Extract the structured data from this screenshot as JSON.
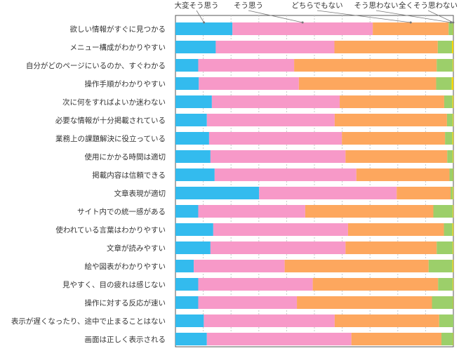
{
  "chart_data": {
    "type": "bar",
    "orientation": "horizontal",
    "stacked": "percent",
    "grid": true,
    "legend_placement": "top, callout labels with leader lines",
    "xlim": [
      0,
      100
    ],
    "categories": [
      "欲しい情報がすぐに見つかる",
      "メニュー構成がわかりやすい",
      "自分がどのページにいるのか、すぐわかる",
      "操作手順がわかりやすい",
      "次に何をすればよいか迷わない",
      "必要な情報が十分掲載されている",
      "業務上の課題解決に役立っている",
      "使用にかかる時間は適切",
      "掲載内容は信頼できる",
      "文章表現が適切",
      "サイト内での統一感がある",
      "使われている言葉はわかりやすい",
      "文章が読みやすい",
      "絵や図表がわかりやすい",
      "見やすく、目の疲れは感じない",
      "操作に対する反応が速い",
      "表示が遅くなったり、途中で止まることはない",
      "画面は正しく表示される"
    ],
    "series": [
      {
        "name": "大変そう思う",
        "color": "#33bbee",
        "values": [
          20.5,
          14.5,
          8.2,
          8.4,
          13.1,
          11.3,
          12.1,
          12.6,
          14.1,
          30.1,
          8.2,
          13.6,
          12.6,
          6.6,
          8.2,
          8.2,
          10.2,
          11.3
        ]
      },
      {
        "name": "そう思う",
        "color": "#f799c8",
        "values": [
          50.5,
          42.7,
          34.5,
          36.0,
          46.0,
          46.0,
          47.8,
          48.6,
          51.0,
          49.5,
          38.5,
          48.5,
          48.6,
          32.7,
          41.2,
          35.5,
          47.1,
          52.0
        ]
      },
      {
        "name": "どちらでもない",
        "color": "#fda75e",
        "values": [
          27.3,
          37.2,
          51.3,
          49.4,
          37.6,
          40.4,
          37.1,
          36.6,
          33.5,
          19.4,
          46.1,
          34.5,
          32.8,
          51.8,
          45.1,
          48.6,
          37.6,
          32.4
        ]
      },
      {
        "name": "そう思わない",
        "color": "#9ccf6a",
        "values": [
          1.6,
          5.1,
          5.8,
          5.6,
          3.0,
          2.1,
          2.7,
          2.0,
          1.3,
          0.8,
          7.0,
          3.1,
          5.8,
          8.6,
          5.3,
          7.6,
          5.1,
          4.2
        ]
      },
      {
        "name": "全くそう思わない",
        "color": "#f5d800",
        "values": [
          0.1,
          0.5,
          0.2,
          0.6,
          0.3,
          0.2,
          0.3,
          0.2,
          0.1,
          0.2,
          0.2,
          0.3,
          0.2,
          0.3,
          0.2,
          0.1,
          0.0,
          0.1
        ]
      }
    ]
  }
}
